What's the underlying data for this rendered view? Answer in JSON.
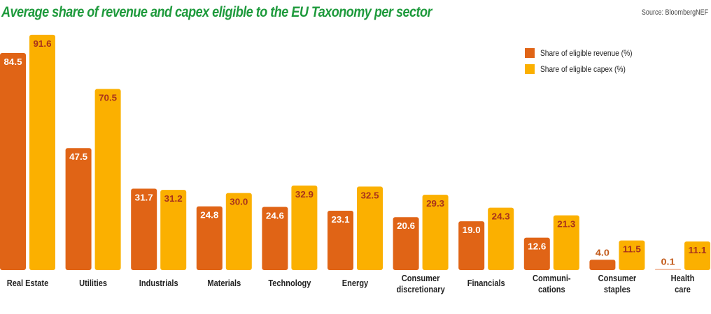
{
  "chart_data": {
    "type": "bar",
    "title": "Average share of revenue and capex eligible to the EU Taxonomy per sector",
    "source": "Source: BloombergNEF",
    "xlabel": "",
    "ylabel": "",
    "ylim": [
      0,
      100
    ],
    "grid": false,
    "legend_position": "top-right",
    "categories": [
      [
        "Real Estate"
      ],
      [
        "Utilities"
      ],
      [
        "Industrials"
      ],
      [
        "Materials"
      ],
      [
        "Technology"
      ],
      [
        "Energy"
      ],
      [
        "Consumer",
        "discretionary"
      ],
      [
        "Financials"
      ],
      [
        "Communi-",
        "cations"
      ],
      [
        "Consumer",
        "staples"
      ],
      [
        "Health",
        "care"
      ]
    ],
    "series": [
      {
        "name": "Share of eligible revenue (%)",
        "color": "#e06416",
        "label_color": "#ffffff",
        "values": [
          84.5,
          47.5,
          31.7,
          24.8,
          24.6,
          23.1,
          20.6,
          19.0,
          12.6,
          4.0,
          0.1
        ],
        "labels": [
          "84.5",
          "47.5",
          "31.7",
          "24.8",
          "24.6",
          "23.1",
          "20.6",
          "19.0",
          "12.6",
          "4.0",
          "0.1"
        ]
      },
      {
        "name": "Share of eligible capex (%)",
        "color": "#fbb000",
        "label_color": "#a8321c",
        "values": [
          91.6,
          70.5,
          31.2,
          30.0,
          32.9,
          32.5,
          29.3,
          24.3,
          21.3,
          11.5,
          11.1
        ],
        "labels": [
          "91.6",
          "70.5",
          "31.2",
          "30.0",
          "32.9",
          "32.5",
          "29.3",
          "24.3",
          "21.3",
          "11.5",
          "11.1"
        ]
      }
    ]
  }
}
